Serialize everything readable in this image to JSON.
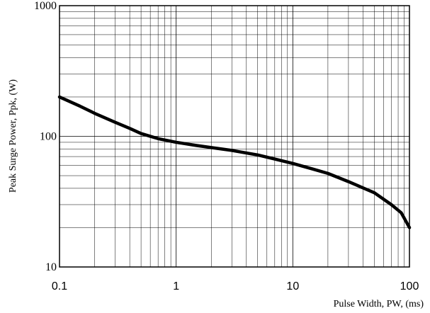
{
  "chart_data": {
    "type": "line",
    "xlabel": "Pulse Width, PW, (ms)",
    "ylabel": "Peak Surge Power, Ppk, (W)",
    "x_scale": "log",
    "y_scale": "log",
    "xlim": [
      0.1,
      100
    ],
    "ylim": [
      10,
      1000
    ],
    "grid": true,
    "x_ticks": [
      {
        "value": 0.1,
        "label": "0.1"
      },
      {
        "value": 1,
        "label": "1"
      },
      {
        "value": 10,
        "label": "10"
      },
      {
        "value": 100,
        "label": "100"
      }
    ],
    "y_ticks": [
      {
        "value": 10,
        "label": "10"
      },
      {
        "value": 100,
        "label": "100"
      },
      {
        "value": 1000,
        "label": "1000"
      }
    ],
    "series": [
      {
        "color": "#000000",
        "x": [
          0.1,
          0.15,
          0.2,
          0.3,
          0.4,
          0.5,
          0.7,
          1,
          1.5,
          2,
          3,
          5,
          7,
          10,
          15,
          20,
          30,
          50,
          70,
          85,
          100
        ],
        "y": [
          200,
          170,
          150,
          128,
          115,
          105,
          96,
          90,
          85,
          82,
          78,
          72,
          67,
          62,
          56,
          52,
          45,
          37,
          30,
          26,
          20
        ]
      }
    ]
  }
}
